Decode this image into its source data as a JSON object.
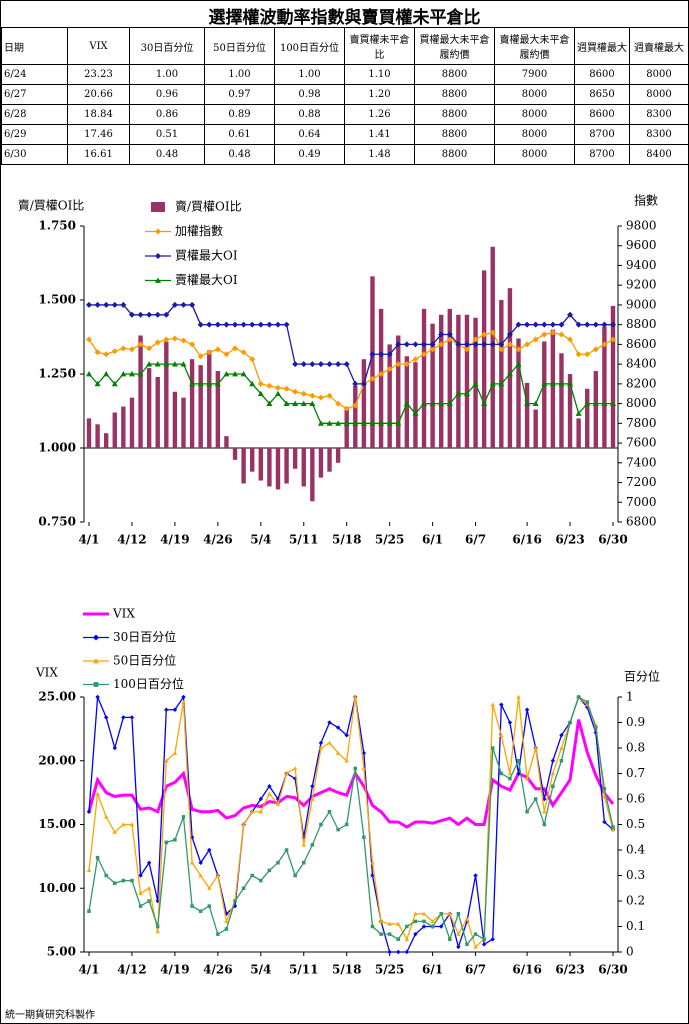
{
  "header": {
    "title": "選擇權波動率指數與賣買權未平倉比",
    "footer": "統一期貨研究科製作"
  },
  "table": {
    "columns": [
      "日期",
      "VIX",
      "30日百分位",
      "50日百分位",
      "100日百分位",
      "賣買權未平倉比",
      "買權最大未平倉履約價",
      "賣權最大未平倉履約價",
      "週買權最大",
      "週賣權最大"
    ],
    "rows": [
      [
        "6/24",
        "23.23",
        "1.00",
        "1.00",
        "1.00",
        "1.10",
        "8800",
        "7900",
        "8600",
        "8000"
      ],
      [
        "6/27",
        "20.66",
        "0.96",
        "0.97",
        "0.98",
        "1.20",
        "8800",
        "8000",
        "8650",
        "8000"
      ],
      [
        "6/28",
        "18.84",
        "0.86",
        "0.89",
        "0.88",
        "1.26",
        "8800",
        "8000",
        "8600",
        "8300"
      ],
      [
        "6/29",
        "17.46",
        "0.51",
        "0.61",
        "0.64",
        "1.41",
        "8800",
        "8000",
        "8700",
        "8300"
      ],
      [
        "6/30",
        "16.61",
        "0.48",
        "0.48",
        "0.49",
        "1.48",
        "8800",
        "8000",
        "8700",
        "8400"
      ]
    ]
  },
  "chart_data": [
    {
      "type": "combo",
      "y_label": "賣/買權OI比",
      "y2_label": "指數",
      "categories": [
        "4/1",
        null,
        null,
        null,
        null,
        "4/12",
        null,
        null,
        null,
        null,
        "4/19",
        null,
        null,
        null,
        null,
        "4/26",
        null,
        null,
        null,
        null,
        "5/4",
        null,
        null,
        null,
        null,
        "5/11",
        null,
        null,
        null,
        null,
        "5/18",
        null,
        null,
        null,
        null,
        "5/25",
        null,
        null,
        null,
        null,
        "6/1",
        null,
        null,
        null,
        null,
        "6/7",
        null,
        null,
        null,
        null,
        null,
        "6/16",
        null,
        null,
        null,
        null,
        "6/23",
        null,
        null,
        null,
        null,
        "6/30"
      ],
      "series": [
        {
          "name": "賣/買權OI比",
          "type": "bar",
          "color": "#993366",
          "values": [
            1.1,
            1.08,
            1.05,
            1.12,
            1.14,
            1.17,
            1.38,
            1.27,
            1.24,
            1.36,
            1.19,
            1.17,
            1.3,
            1.28,
            1.33,
            1.26,
            1.04,
            0.96,
            0.88,
            0.92,
            0.89,
            0.87,
            0.86,
            0.88,
            0.93,
            0.87,
            0.82,
            0.9,
            0.92,
            0.95,
            1.13,
            1.21,
            1.3,
            1.58,
            1.47,
            1.35,
            1.38,
            1.31,
            1.29,
            1.47,
            1.42,
            1.45,
            1.47,
            1.45,
            1.45,
            1.44,
            1.6,
            1.68,
            1.5,
            1.54,
            1.37,
            1.22,
            1.13,
            1.36,
            1.4,
            1.32,
            1.25,
            1.1,
            1.2,
            1.26,
            1.41,
            1.48
          ]
        },
        {
          "name": "加權指數",
          "type": "line",
          "axis": "y2",
          "marker": "diamond",
          "color": "#ff9900",
          "values": [
            8650,
            8520,
            8500,
            8530,
            8560,
            8550,
            8600,
            8560,
            8620,
            8650,
            8660,
            8640,
            8600,
            8480,
            8520,
            8550,
            8500,
            8560,
            8520,
            8450,
            8200,
            8180,
            8160,
            8150,
            8120,
            8100,
            8080,
            8060,
            8080,
            8000,
            7950,
            7980,
            8200,
            8250,
            8300,
            8350,
            8400,
            8400,
            8450,
            8500,
            8550,
            8600,
            8650,
            8600,
            8550,
            8650,
            8700,
            8720,
            8550,
            8600,
            8550,
            8600,
            8650,
            8700,
            8720,
            8700,
            8650,
            8500,
            8500,
            8550,
            8600,
            8650
          ]
        },
        {
          "name": "買權最大OI",
          "type": "line",
          "axis": "y2",
          "marker": "diamond",
          "color": "#1a1aa6",
          "values": [
            9000,
            9000,
            9000,
            9000,
            9000,
            8900,
            8900,
            8900,
            8900,
            8900,
            9000,
            9000,
            9000,
            8800,
            8800,
            8800,
            8800,
            8800,
            8800,
            8800,
            8800,
            8800,
            8800,
            8800,
            8400,
            8400,
            8400,
            8400,
            8400,
            8400,
            8400,
            8200,
            8200,
            8500,
            8500,
            8500,
            8600,
            8600,
            8600,
            8600,
            8600,
            8700,
            8700,
            8600,
            8600,
            8600,
            8600,
            8600,
            8600,
            8700,
            8800,
            8800,
            8800,
            8800,
            8800,
            8800,
            8900,
            8800,
            8800,
            8800,
            8800,
            8800
          ]
        },
        {
          "name": "賣權最大OI",
          "type": "line",
          "axis": "y2",
          "marker": "triangle",
          "color": "#008000",
          "values": [
            8300,
            8200,
            8300,
            8200,
            8300,
            8300,
            8300,
            8400,
            8400,
            8400,
            8400,
            8400,
            8200,
            8200,
            8200,
            8200,
            8300,
            8300,
            8300,
            8200,
            8100,
            8000,
            8100,
            8000,
            8000,
            8000,
            8000,
            7800,
            7800,
            7800,
            7800,
            7800,
            7800,
            7800,
            7800,
            7800,
            7800,
            8000,
            7900,
            8000,
            8000,
            8000,
            8000,
            8100,
            8100,
            8200,
            8000,
            8200,
            8200,
            8300,
            8400,
            8000,
            8000,
            8200,
            8200,
            8200,
            8200,
            7900,
            8000,
            8000,
            8000,
            8000
          ]
        }
      ],
      "ylim": [
        0.75,
        1.75
      ],
      "yticks": [
        {
          "value": 0.75,
          "label": "0.750"
        },
        {
          "value": 1,
          "label": "1.000"
        },
        {
          "value": 1.25,
          "label": "1.250"
        },
        {
          "value": 1.5,
          "label": "1.500"
        },
        {
          "value": 1.75,
          "label": "1.750"
        }
      ],
      "y2lim": [
        6800,
        9800
      ],
      "y2ticks": [
        6800,
        7000,
        7200,
        7400,
        7600,
        7800,
        8000,
        8200,
        8400,
        8600,
        8800,
        9000,
        9200,
        9400,
        9600,
        9800
      ],
      "bar_base": 1
    },
    {
      "type": "line",
      "y_label": "VIX",
      "y2_label": "百分位",
      "categories": [
        "4/1",
        null,
        null,
        null,
        null,
        "4/12",
        null,
        null,
        null,
        null,
        "4/19",
        null,
        null,
        null,
        null,
        "4/26",
        null,
        null,
        null,
        null,
        "5/4",
        null,
        null,
        null,
        null,
        "5/11",
        null,
        null,
        null,
        null,
        "5/18",
        null,
        null,
        null,
        null,
        "5/25",
        null,
        null,
        null,
        null,
        "6/1",
        null,
        null,
        null,
        null,
        "6/7",
        null,
        null,
        null,
        null,
        null,
        "6/16",
        null,
        null,
        null,
        null,
        "6/23",
        null,
        null,
        null,
        null,
        "6/30"
      ],
      "series": [
        {
          "name": "VIX",
          "color": "#ff00ff",
          "width": 3,
          "values": [
            16.0,
            18.5,
            17.5,
            17.2,
            17.3,
            17.3,
            16.2,
            16.3,
            16.0,
            18.0,
            18.3,
            19.0,
            16.2,
            16.0,
            16.0,
            16.1,
            15.5,
            15.7,
            16.3,
            16.5,
            16.4,
            16.8,
            16.7,
            17.2,
            17.1,
            16.5,
            17.2,
            17.5,
            17.8,
            17.5,
            17.3,
            19.0,
            18.0,
            16.5,
            16.0,
            15.2,
            15.2,
            14.8,
            15.2,
            15.2,
            15.1,
            15.3,
            15.5,
            15.0,
            15.5,
            15.0,
            15.0,
            18.5,
            18.0,
            17.7,
            19.0,
            18.7,
            17.8,
            17.8,
            16.5,
            17.5,
            18.5,
            23.23,
            20.66,
            18.84,
            17.46,
            16.61
          ]
        },
        {
          "name": "30日百分位",
          "axis": "y2",
          "marker": "diamond",
          "color": "#0000ff",
          "values": [
            0.55,
            1.0,
            0.92,
            0.8,
            0.92,
            0.92,
            0.3,
            0.35,
            0.2,
            0.95,
            0.95,
            1.0,
            0.45,
            0.35,
            0.4,
            0.3,
            0.15,
            0.18,
            0.5,
            0.55,
            0.6,
            0.65,
            0.6,
            0.7,
            0.68,
            0.45,
            0.65,
            0.82,
            0.9,
            0.88,
            0.85,
            1.0,
            0.78,
            0.3,
            0.12,
            0.0,
            0.0,
            0.0,
            0.07,
            0.1,
            0.1,
            0.1,
            0.15,
            0.02,
            0.12,
            0.3,
            0.03,
            0.05,
            0.97,
            0.9,
            0.7,
            0.95,
            0.8,
            0.6,
            0.75,
            0.85,
            0.9,
            1.0,
            0.96,
            0.86,
            0.51,
            0.48
          ]
        },
        {
          "name": "50日百分位",
          "axis": "y2",
          "marker": "triangle",
          "color": "#ffa500",
          "values": [
            0.32,
            0.62,
            0.53,
            0.47,
            0.5,
            0.5,
            0.23,
            0.25,
            0.08,
            0.75,
            0.78,
            0.98,
            0.35,
            0.3,
            0.25,
            0.3,
            0.12,
            0.2,
            0.5,
            0.55,
            0.55,
            0.62,
            0.58,
            0.7,
            0.72,
            0.42,
            0.6,
            0.8,
            0.82,
            0.78,
            0.75,
            1.0,
            0.72,
            0.35,
            0.12,
            0.11,
            0.11,
            0.05,
            0.15,
            0.15,
            0.12,
            0.15,
            0.15,
            0.07,
            0.13,
            0.02,
            0.05,
            0.97,
            0.85,
            0.7,
            1.0,
            0.68,
            0.8,
            0.55,
            0.7,
            0.8,
            0.9,
            1.0,
            0.97,
            0.89,
            0.61,
            0.48
          ]
        },
        {
          "name": "100日百分位",
          "axis": "y2",
          "marker": "square",
          "color": "#339966",
          "values": [
            0.16,
            0.37,
            0.3,
            0.27,
            0.28,
            0.28,
            0.18,
            0.2,
            0.1,
            0.43,
            0.44,
            0.53,
            0.18,
            0.16,
            0.18,
            0.07,
            0.09,
            0.2,
            0.25,
            0.3,
            0.28,
            0.32,
            0.35,
            0.4,
            0.3,
            0.35,
            0.42,
            0.5,
            0.55,
            0.48,
            0.5,
            0.72,
            0.45,
            0.1,
            0.07,
            0.07,
            0.05,
            0.1,
            0.12,
            0.12,
            0.1,
            0.15,
            0.05,
            0.15,
            0.03,
            0.07,
            0.05,
            0.8,
            0.7,
            0.68,
            0.75,
            0.55,
            0.6,
            0.5,
            0.65,
            0.75,
            0.9,
            1.0,
            0.98,
            0.88,
            0.64,
            0.49
          ]
        }
      ],
      "ylim": [
        5,
        25
      ],
      "yticks": [
        {
          "value": 5,
          "label": "5.00"
        },
        {
          "value": 10,
          "label": "10.00"
        },
        {
          "value": 15,
          "label": "15.00"
        },
        {
          "value": 20,
          "label": "20.00"
        },
        {
          "value": 25,
          "label": "25.00"
        }
      ],
      "y2lim": [
        0,
        1
      ],
      "y2ticks": [
        0,
        0.1,
        0.2,
        0.3,
        0.4,
        0.5,
        0.6,
        0.7,
        0.8,
        0.9,
        1
      ]
    }
  ]
}
